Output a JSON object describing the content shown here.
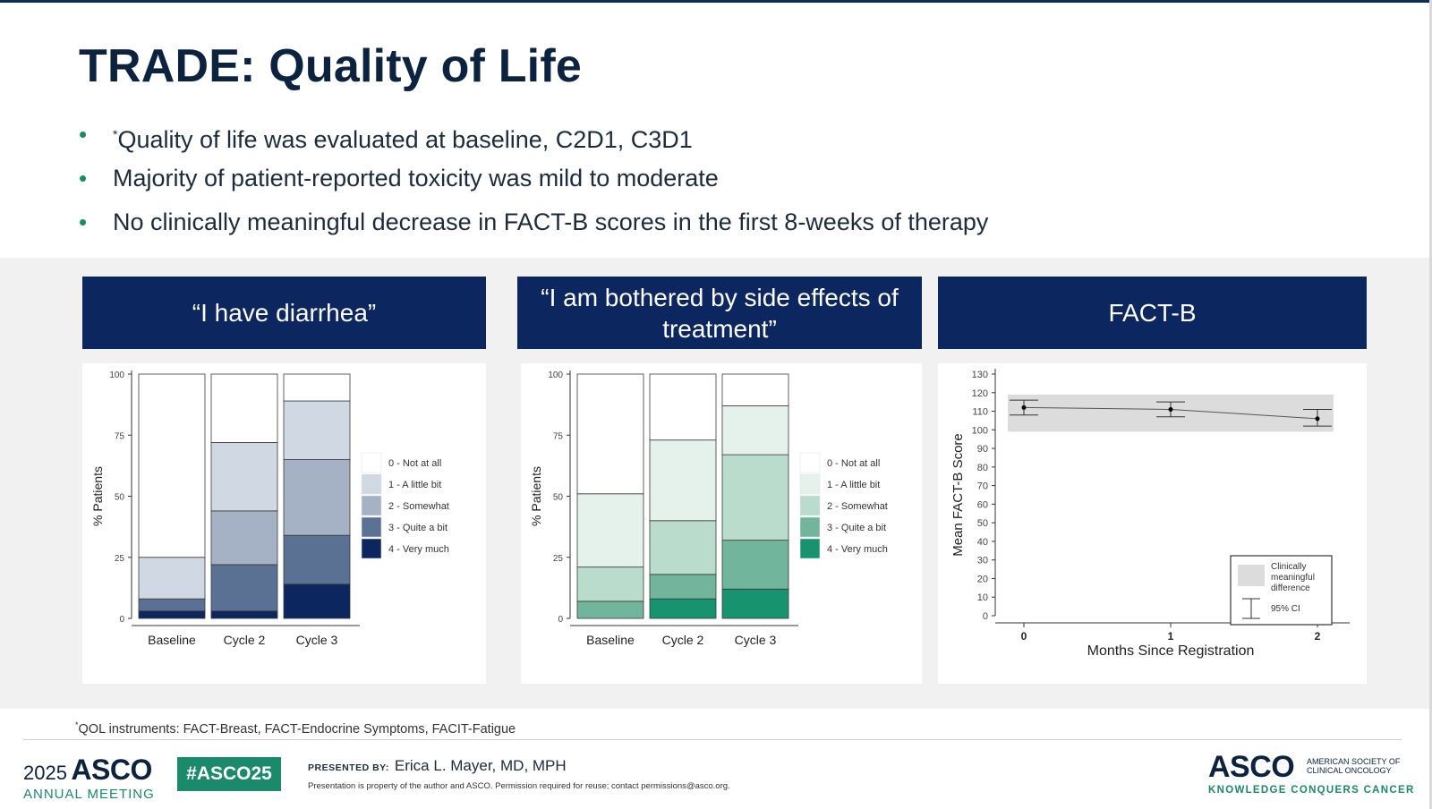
{
  "slide": {
    "title": "TRADE: Quality of Life",
    "bullets": [
      {
        "sup": "*",
        "text": "Quality of life was evaluated at baseline, C2D1, C3D1"
      },
      {
        "sup": "",
        "text": "Majority of patient-reported toxicity was mild to moderate"
      },
      {
        "sup": "",
        "text": "No clinically meaningful decrease in FACT-B scores in the first 8-weeks of therapy"
      }
    ],
    "bullet_color": "#1a8a6a",
    "panel_headers": [
      "“I have diarrhea”",
      "“I am bothered by side effects of treatment”",
      "FACT-B"
    ],
    "footnote_sup": "*",
    "footnote": "QOL instruments: FACT-Breast, FACT-Endocrine Symptoms, FACIT-Fatigue"
  },
  "footer": {
    "year": "2025",
    "asco": "ASCO",
    "annual_meeting": "ANNUAL MEETING",
    "hashtag": "#ASCO25",
    "presented_label": "PRESENTED BY:",
    "presenter": "Erica L. Mayer, MD, MPH",
    "property_note": "Presentation is property of the author and ASCO. Permission required for reuse; contact permissions@asco.org.",
    "asco_right": "ASCO",
    "society_line1": "AMERICAN SOCIETY OF",
    "society_line2": "CLINICAL ONCOLOGY",
    "tagline": "KNOWLEDGE CONQUERS CANCER"
  },
  "chart_data": [
    {
      "type": "bar",
      "stacked": true,
      "ylabel": "% Patients",
      "ylim": [
        0,
        100
      ],
      "yticks": [
        0,
        25,
        50,
        75,
        100
      ],
      "categories": [
        "Baseline",
        "Cycle 2",
        "Cycle 3"
      ],
      "series": [
        {
          "name": "4 - Very much",
          "color": "#0c2660",
          "values": [
            3,
            3,
            14
          ]
        },
        {
          "name": "3 - Quite a bit",
          "color": "#5a7194",
          "values": [
            5,
            19,
            20
          ]
        },
        {
          "name": "2 - Somewhat",
          "color": "#a5b2c6",
          "values": [
            0,
            22,
            31
          ]
        },
        {
          "name": "1 - A little bit",
          "color": "#d0d8e3",
          "values": [
            17,
            28,
            24
          ]
        },
        {
          "name": "0 - Not at all",
          "color": "#ffffff",
          "values": [
            75,
            28,
            11
          ]
        }
      ],
      "legend_position": "right"
    },
    {
      "type": "bar",
      "stacked": true,
      "ylabel": "% Patients",
      "ylim": [
        0,
        100
      ],
      "yticks": [
        0,
        25,
        50,
        75,
        100
      ],
      "categories": [
        "Baseline",
        "Cycle 2",
        "Cycle 3"
      ],
      "series": [
        {
          "name": "4 - Very much",
          "color": "#17936f",
          "values": [
            0,
            8,
            12
          ]
        },
        {
          "name": "3 - Quite a bit",
          "color": "#70b59c",
          "values": [
            7,
            10,
            20
          ]
        },
        {
          "name": "2 - Somewhat",
          "color": "#b9dccd",
          "values": [
            14,
            22,
            35
          ]
        },
        {
          "name": "1 - A little bit",
          "color": "#e5f2ec",
          "values": [
            30,
            33,
            20
          ]
        },
        {
          "name": "0 - Not at all",
          "color": "#ffffff",
          "values": [
            49,
            27,
            13
          ]
        }
      ],
      "legend_position": "right"
    },
    {
      "type": "line",
      "xlabel": "Months Since Registration",
      "ylabel": "Mean FACT-B Score",
      "x": [
        0,
        1,
        2
      ],
      "xticks": [
        0,
        1,
        2
      ],
      "ylim": [
        0,
        130
      ],
      "yticks": [
        0,
        10,
        20,
        30,
        40,
        50,
        60,
        70,
        80,
        90,
        100,
        110,
        120,
        130
      ],
      "series": [
        {
          "values": [
            112,
            111,
            106
          ],
          "ci_low": [
            108,
            107,
            102
          ],
          "ci_high": [
            116,
            115,
            111
          ]
        }
      ],
      "band": {
        "low": 99,
        "high": 119,
        "color": "#dcdcdc"
      },
      "legend": {
        "band_label": [
          "Clinically",
          "meaningful",
          "difference"
        ],
        "ci_label": "95% CI"
      },
      "legend_position": "bottom-right"
    }
  ]
}
